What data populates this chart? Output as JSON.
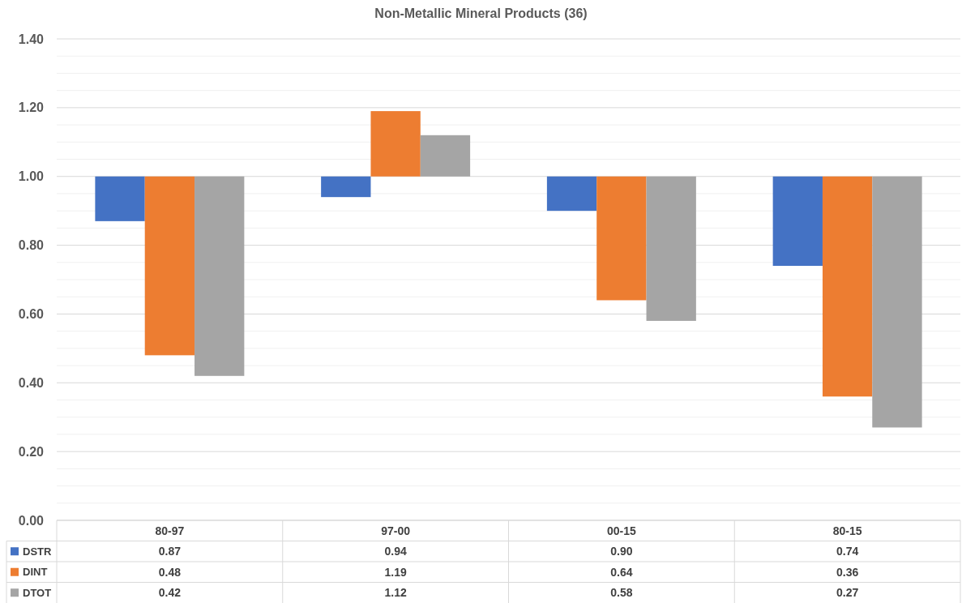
{
  "chart_data": {
    "type": "bar",
    "title": "Non-Metallic Mineral Products (36)",
    "categories": [
      "80-97",
      "97-00",
      "00-15",
      "80-15"
    ],
    "series": [
      {
        "name": "DSTR",
        "color": "#4472c4",
        "base": [
          1,
          1,
          1,
          1
        ],
        "values": [
          -0.13,
          -0.06,
          -0.1,
          -0.26
        ],
        "value_labels": [
          "0.87",
          "0.94",
          "0.90",
          "0.74"
        ]
      },
      {
        "name": "DINT",
        "color": "#ed7d31",
        "base": [
          1,
          1,
          1,
          1
        ],
        "values": [
          -0.52,
          0.19,
          -0.36,
          -0.64
        ],
        "value_labels": [
          "0.48",
          "1.19",
          "0.64",
          "0.36"
        ]
      },
      {
        "name": "DTOT",
        "color": "#a5a5a5",
        "base": [
          1,
          1,
          1,
          1
        ],
        "values": [
          -0.58,
          0.12,
          -0.42,
          -0.73
        ],
        "value_labels": [
          "0.42",
          "1.12",
          "0.58",
          "0.27"
        ]
      }
    ],
    "ylim": [
      0,
      1.4
    ],
    "yticks": [
      {
        "value": 0,
        "label": "0.00"
      },
      {
        "value": 0.05,
        "label": null
      },
      {
        "value": 0.1,
        "label": null
      },
      {
        "value": 0.15,
        "label": null
      },
      {
        "value": 0.2,
        "label": "0.20"
      },
      {
        "value": 0.25,
        "label": null
      },
      {
        "value": 0.3,
        "label": null
      },
      {
        "value": 0.35,
        "label": null
      },
      {
        "value": 0.4,
        "label": "0.40"
      },
      {
        "value": 0.45,
        "label": null
      },
      {
        "value": 0.5,
        "label": null
      },
      {
        "value": 0.55,
        "label": null
      },
      {
        "value": 0.6,
        "label": "0.60"
      },
      {
        "value": 0.65,
        "label": null
      },
      {
        "value": 0.7,
        "label": null
      },
      {
        "value": 0.75,
        "label": null
      },
      {
        "value": 0.8,
        "label": "0.80"
      },
      {
        "value": 0.85,
        "label": null
      },
      {
        "value": 0.9,
        "label": null
      },
      {
        "value": 0.95,
        "label": null
      },
      {
        "value": 1,
        "label": "1.00"
      },
      {
        "value": 1.05,
        "label": null
      },
      {
        "value": 1.1,
        "label": null
      },
      {
        "value": 1.15,
        "label": null
      },
      {
        "value": 1.2,
        "label": "1.20"
      },
      {
        "value": 1.25,
        "label": null
      },
      {
        "value": 1.3,
        "label": null
      },
      {
        "value": 1.35,
        "label": null
      },
      {
        "value": 1.4,
        "label": "1.40"
      }
    ],
    "grid": true,
    "legend": "bottom"
  }
}
